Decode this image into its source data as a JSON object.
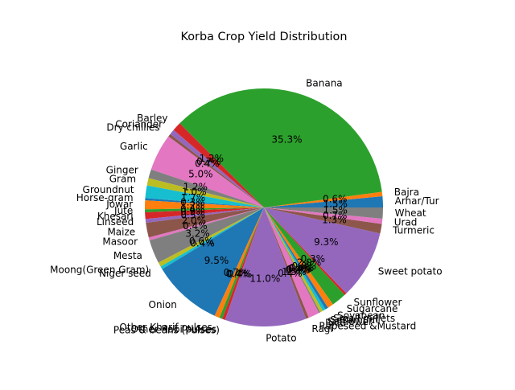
{
  "chart_data": {
    "type": "pie",
    "title": "Korba Crop Yield Distribution",
    "start_angle_deg": 0,
    "direction": "counterclockwise",
    "slices": [
      {
        "label": "Arhar/Tur",
        "value": 1.5,
        "color": "#1f77b4"
      },
      {
        "label": "Bajra",
        "value": 0.6,
        "color": "#ff7f0e"
      },
      {
        "label": "Banana",
        "value": 35.3,
        "color": "#2ca02c"
      },
      {
        "label": "Barley",
        "value": 1.2,
        "color": "#d62728"
      },
      {
        "label": "Coriander",
        "value": 0.7,
        "color": "#9467bd"
      },
      {
        "label": "Dry chillies",
        "value": 0.4,
        "color": "#8c564b"
      },
      {
        "label": "Garlic",
        "value": 5.0,
        "color": "#e377c2"
      },
      {
        "label": "Ginger",
        "value": 1.2,
        "color": "#7f7f7f"
      },
      {
        "label": "Gram",
        "value": 1.0,
        "color": "#bcbd22"
      },
      {
        "label": "Groundnut",
        "value": 1.7,
        "color": "#17becf"
      },
      {
        "label": "Horse-gram",
        "value": 0.3,
        "color": "#1f77b4"
      },
      {
        "label": "Jowar",
        "value": 1.2,
        "color": "#ff7f0e"
      },
      {
        "label": "Jute",
        "value": 0.4,
        "color": "#2ca02c"
      },
      {
        "label": "Khesari",
        "value": 0.9,
        "color": "#d62728"
      },
      {
        "label": "Linseed",
        "value": 0.5,
        "color": "#9467bd"
      },
      {
        "label": "Maize",
        "value": 2.0,
        "color": "#8c564b"
      },
      {
        "label": "Masoor",
        "value": 0.4,
        "color": "#e377c2"
      },
      {
        "label": "Mesta",
        "value": 3.2,
        "color": "#7f7f7f"
      },
      {
        "label": "Moong(Green Gram)",
        "value": 0.6,
        "color": "#bcbd22"
      },
      {
        "label": "Niger seed",
        "value": 0.4,
        "color": "#17becf"
      },
      {
        "label": "Onion",
        "value": 9.5,
        "color": "#1f77b4"
      },
      {
        "label": "Other Kharif pulses",
        "value": 0.7,
        "color": "#ff7f0e"
      },
      {
        "label": "Other Rabi pulses",
        "value": 0.4,
        "color": "#2ca02c"
      },
      {
        "label": "Peas & beans (Pulses)",
        "value": 0.4,
        "color": "#d62728"
      },
      {
        "label": "Potato",
        "value": 11.0,
        "color": "#9467bd"
      },
      {
        "label": "Ragi",
        "value": 0.4,
        "color": "#8c564b"
      },
      {
        "label": "Rapeseed &Mustard",
        "value": 1.5,
        "color": "#e377c2"
      },
      {
        "label": "Rice",
        "value": 0.2,
        "color": "#7f7f7f"
      },
      {
        "label": "Safflower",
        "value": 0.4,
        "color": "#bcbd22"
      },
      {
        "label": "Sesamum",
        "value": 0.4,
        "color": "#17becf"
      },
      {
        "label": "Small millets",
        "value": 0.4,
        "color": "#1f77b4"
      },
      {
        "label": "Soyabean",
        "value": 0.8,
        "color": "#ff7f0e"
      },
      {
        "label": "Sugarcane",
        "value": 2.0,
        "color": "#2ca02c"
      },
      {
        "label": "Sunflower",
        "value": 0.3,
        "color": "#d62728"
      },
      {
        "label": "Sweet potato",
        "value": 9.3,
        "color": "#9467bd"
      },
      {
        "label": "Turmeric",
        "value": 1.3,
        "color": "#8c564b"
      },
      {
        "label": "Urad",
        "value": 0.7,
        "color": "#e377c2"
      },
      {
        "label": "Wheat",
        "value": 1.5,
        "color": "#7f7f7f"
      }
    ]
  }
}
